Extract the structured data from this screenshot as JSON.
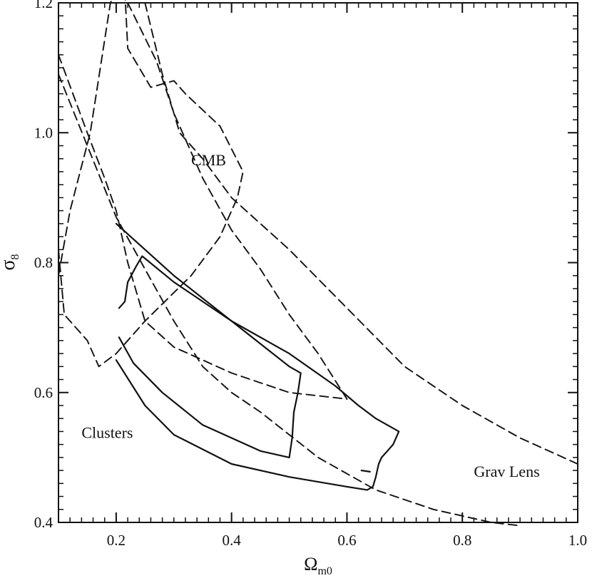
{
  "chart_data": {
    "type": "line",
    "xlabel": "Ω",
    "xlabel_sub": "m0",
    "ylabel": "σ",
    "ylabel_sub": "8",
    "xlim": [
      0.1,
      1.0
    ],
    "ylim": [
      0.4,
      1.2
    ],
    "x_ticks": [
      0.2,
      0.4,
      0.6,
      0.8,
      1.0
    ],
    "x_tick_labels": [
      "0.2",
      "0.4",
      "0.6",
      "0.8",
      "1.0"
    ],
    "y_ticks": [
      0.4,
      0.6,
      0.8,
      1.0,
      1.2
    ],
    "y_tick_labels": [
      "0.4",
      "0.6",
      "0.8",
      "1.0",
      "1.2"
    ],
    "annotations": [
      {
        "text": "CMB",
        "x": 0.33,
        "y": 0.95
      },
      {
        "text": "Clusters",
        "x": 0.14,
        "y": 0.53
      },
      {
        "text": "Grav Lens",
        "x": 0.82,
        "y": 0.47
      }
    ],
    "series": [
      {
        "style": "dashed",
        "group": "CMB",
        "points": [
          [
            0.1,
            0.78
          ],
          [
            0.12,
            0.88
          ],
          [
            0.155,
            1.0
          ],
          [
            0.19,
            1.2
          ],
          [
            0.2,
            1.22
          ]
        ]
      },
      {
        "style": "dashed",
        "group": "CMB",
        "points": [
          [
            0.1,
            0.82
          ],
          [
            0.11,
            0.72
          ],
          [
            0.15,
            0.68
          ],
          [
            0.17,
            0.64
          ],
          [
            0.2,
            0.66
          ],
          [
            0.25,
            0.71
          ],
          [
            0.33,
            0.78
          ],
          [
            0.38,
            0.84
          ],
          [
            0.41,
            0.9
          ],
          [
            0.42,
            0.94
          ],
          [
            0.38,
            1.01
          ],
          [
            0.32,
            1.06
          ],
          [
            0.3,
            1.08
          ],
          [
            0.26,
            1.07
          ],
          [
            0.22,
            1.13
          ],
          [
            0.215,
            1.22
          ]
        ]
      },
      {
        "style": "dashed",
        "group": "Grav Lens",
        "points": [
          [
            0.1,
            1.09
          ],
          [
            0.15,
            0.98
          ],
          [
            0.2,
            0.87
          ],
          [
            0.25,
            0.79
          ],
          [
            0.3,
            0.71
          ],
          [
            0.35,
            0.64
          ],
          [
            0.4,
            0.6
          ],
          [
            0.45,
            0.57
          ],
          [
            0.55,
            0.5
          ],
          [
            0.65,
            0.45
          ],
          [
            0.75,
            0.42
          ],
          [
            0.85,
            0.4
          ],
          [
            0.9,
            0.395
          ]
        ]
      },
      {
        "style": "dashed",
        "group": "Grav Lens",
        "points": [
          [
            0.1,
            1.12
          ],
          [
            0.15,
            1.0
          ],
          [
            0.18,
            0.93
          ],
          [
            0.2,
            0.88
          ],
          [
            0.22,
            0.8
          ],
          [
            0.25,
            0.71
          ],
          [
            0.3,
            0.67
          ],
          [
            0.4,
            0.63
          ],
          [
            0.5,
            0.6
          ],
          [
            0.6,
            0.59
          ]
        ]
      },
      {
        "style": "dashed",
        "group": "Grav Lens",
        "points": [
          [
            0.22,
            1.2
          ],
          [
            0.27,
            1.11
          ],
          [
            0.3,
            1.03
          ],
          [
            0.35,
            0.93
          ],
          [
            0.4,
            0.85
          ],
          [
            0.45,
            0.79
          ],
          [
            0.5,
            0.72
          ],
          [
            0.55,
            0.66
          ],
          [
            0.6,
            0.59
          ]
        ]
      },
      {
        "style": "dashed",
        "group": "Grav Lens",
        "points": [
          [
            0.25,
            1.2
          ],
          [
            0.28,
            1.09
          ],
          [
            0.31,
            1.0
          ],
          [
            0.35,
            0.96
          ],
          [
            0.4,
            0.9
          ],
          [
            0.5,
            0.82
          ],
          [
            0.6,
            0.73
          ],
          [
            0.7,
            0.64
          ],
          [
            0.8,
            0.58
          ],
          [
            0.9,
            0.53
          ],
          [
            1.0,
            0.49
          ]
        ]
      },
      {
        "style": "solid",
        "group": "Clusters",
        "points": [
          [
            0.2,
            0.86
          ],
          [
            0.3,
            0.78
          ],
          [
            0.4,
            0.71
          ],
          [
            0.5,
            0.66
          ],
          [
            0.58,
            0.61
          ],
          [
            0.62,
            0.58
          ],
          [
            0.65,
            0.56
          ],
          [
            0.69,
            0.54
          ],
          [
            0.68,
            0.52
          ],
          [
            0.67,
            0.51
          ],
          [
            0.66,
            0.5
          ],
          [
            0.655,
            0.49
          ],
          [
            0.65,
            0.47
          ],
          [
            0.645,
            0.455
          ],
          [
            0.635,
            0.45
          ],
          [
            0.6,
            0.455
          ],
          [
            0.5,
            0.47
          ],
          [
            0.4,
            0.49
          ],
          [
            0.3,
            0.535
          ],
          [
            0.25,
            0.58
          ],
          [
            0.2,
            0.65
          ]
        ]
      },
      {
        "style": "solid",
        "group": "Clusters",
        "points": [
          [
            0.205,
            0.73
          ],
          [
            0.215,
            0.74
          ],
          [
            0.22,
            0.77
          ],
          [
            0.235,
            0.795
          ],
          [
            0.245,
            0.81
          ],
          [
            0.3,
            0.77
          ],
          [
            0.4,
            0.71
          ],
          [
            0.5,
            0.64
          ],
          [
            0.52,
            0.63
          ],
          [
            0.515,
            0.6
          ],
          [
            0.508,
            0.57
          ],
          [
            0.505,
            0.53
          ],
          [
            0.5,
            0.5
          ],
          [
            0.45,
            0.51
          ],
          [
            0.35,
            0.55
          ],
          [
            0.28,
            0.6
          ],
          [
            0.23,
            0.645
          ],
          [
            0.205,
            0.685
          ]
        ]
      },
      {
        "style": "solid",
        "group": "Clusters",
        "points": [
          [
            0.625,
            0.48
          ],
          [
            0.64,
            0.478
          ]
        ]
      }
    ]
  }
}
